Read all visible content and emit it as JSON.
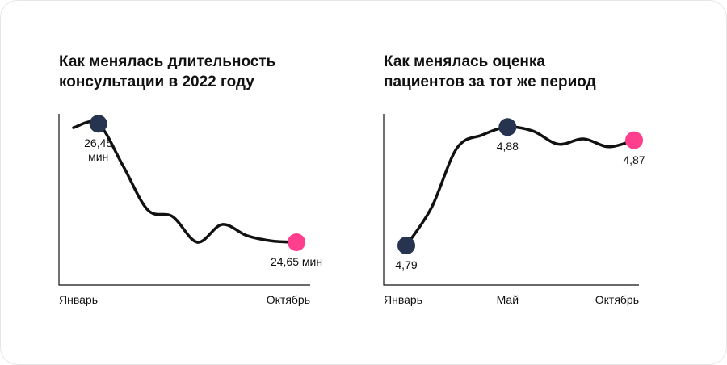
{
  "chart_data": [
    {
      "type": "line",
      "title": "Как менялась длительность консультации в 2022 году",
      "categories": [
        "Январь",
        null,
        null,
        null,
        null,
        null,
        null,
        null,
        null,
        "Октябрь"
      ],
      "values": [
        26.39,
        26.45,
        25.81,
        25.14,
        25.04,
        24.65,
        24.92,
        24.75,
        24.67,
        24.65
      ],
      "value_labels": [
        null,
        "26,45 мин",
        null,
        null,
        null,
        null,
        null,
        null,
        null,
        "24,65 мин"
      ],
      "color": "#111111",
      "marker_color": "#26344f",
      "last_marker_color": "#ff3f8e",
      "ylim": [
        24,
        26.6
      ]
    },
    {
      "type": "line",
      "title": "Как менялась оценка пациентов за тот же период",
      "categories": [
        "Январь",
        null,
        null,
        null,
        "Май",
        null,
        null,
        null,
        null,
        "Октябрь"
      ],
      "values": [
        4.79,
        4.819,
        4.864,
        4.874,
        4.88,
        4.877,
        4.867,
        4.871,
        4.865,
        4.87
      ],
      "value_labels": [
        "4,79",
        null,
        null,
        null,
        "4,88",
        null,
        null,
        null,
        null,
        "4,87"
      ],
      "color": "#111111",
      "marker_color": "#26344f",
      "last_marker_color": "#ff3f8e",
      "ylim": [
        4.76,
        4.89
      ]
    }
  ]
}
